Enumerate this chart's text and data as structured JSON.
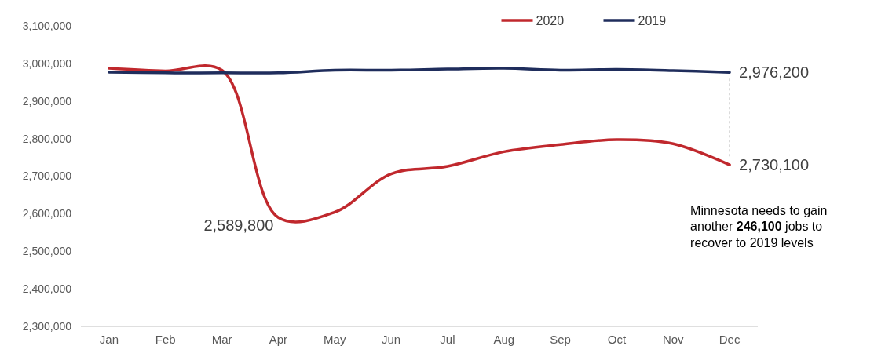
{
  "chart_data": {
    "type": "line",
    "categories": [
      "Jan",
      "Feb",
      "Mar",
      "Apr",
      "May",
      "Jun",
      "Jul",
      "Aug",
      "Sep",
      "Oct",
      "Nov",
      "Dec"
    ],
    "series": [
      {
        "name": "2020",
        "color": "#c0282d",
        "values": [
          2987000,
          2980000,
          2982000,
          2589800,
          2604000,
          2706000,
          2726000,
          2765000,
          2784000,
          2797000,
          2786000,
          2730100
        ],
        "value_labels": [
          null,
          null,
          null,
          "2,589,800",
          null,
          null,
          null,
          null,
          null,
          null,
          null,
          "2,730,100"
        ]
      },
      {
        "name": "2019",
        "color": "#1f2d5c",
        "values": [
          2977000,
          2975000,
          2975000,
          2975000,
          2982000,
          2982000,
          2985000,
          2987000,
          2982000,
          2984000,
          2981000,
          2976200
        ],
        "value_labels": [
          null,
          null,
          null,
          null,
          null,
          null,
          null,
          null,
          null,
          null,
          null,
          "2,976,200"
        ]
      }
    ],
    "ylim": [
      2300000,
      3100000
    ],
    "yticks": [
      {
        "value": 2300000,
        "label": "2,300,000"
      },
      {
        "value": 2400000,
        "label": "2,400,000"
      },
      {
        "value": 2500000,
        "label": "2,500,000"
      },
      {
        "value": 2600000,
        "label": "2,600,000"
      },
      {
        "value": 2700000,
        "label": "2,700,000"
      },
      {
        "value": 2800000,
        "label": "2,800,000"
      },
      {
        "value": 2900000,
        "label": "2,900,000"
      },
      {
        "value": 3000000,
        "label": "3,000,000"
      },
      {
        "value": 3100000,
        "label": "3,100,000"
      }
    ],
    "legend": "top",
    "grid": false,
    "marker": "none",
    "line_style": "solid",
    "annotations": [
      "Minnesota needs to gain another 246,100 jobs to recover to 2019 levels"
    ]
  }
}
